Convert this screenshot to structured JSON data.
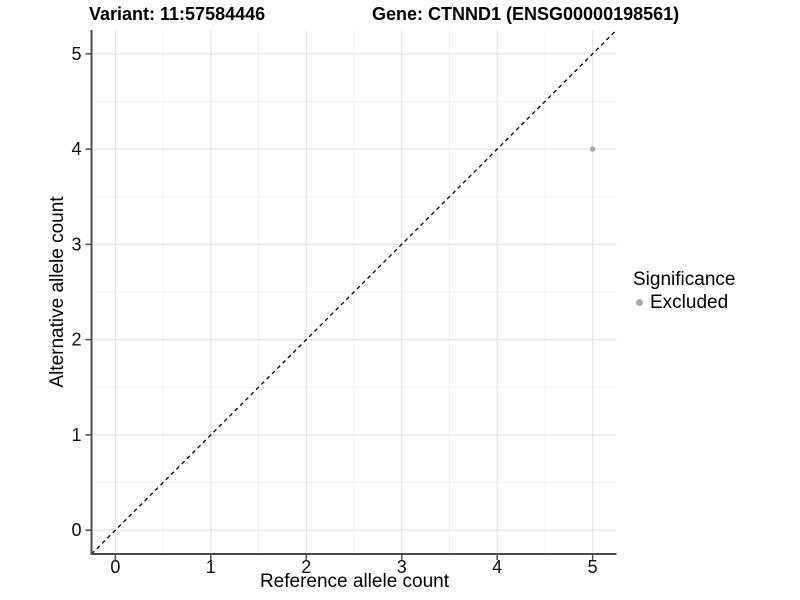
{
  "chart_data": {
    "type": "scatter",
    "title_left": "Variant: 11:57584446",
    "title_right": "Gene: CTNND1 (ENSG00000198561)",
    "xlabel": "Reference allele count",
    "ylabel": "Alternative allele count",
    "xlim": [
      -0.25,
      5.25
    ],
    "ylim": [
      -0.25,
      5.25
    ],
    "x_ticks": [
      0,
      1,
      2,
      3,
      4,
      5
    ],
    "y_ticks": [
      0,
      1,
      2,
      3,
      4,
      5
    ],
    "minor_breaks": [
      0.5,
      1.5,
      2.5,
      3.5,
      4.5
    ],
    "grid": true,
    "legend_position": "right",
    "legend_title": "Significance",
    "series": [
      {
        "name": "Excluded",
        "color": "#ababab",
        "points": [
          {
            "x": 5,
            "y": 4
          }
        ]
      }
    ],
    "identity_line": {
      "style": "dashed",
      "color": "#000000",
      "from": [
        -0.25,
        -0.25
      ],
      "to": [
        5.25,
        5.25
      ]
    },
    "colors": {
      "grid_major": "#e5e5e5",
      "grid_minor": "#f2f2f2",
      "axis_line": "#4d4d4d",
      "tick_text": "#0d0d0d",
      "background": "#ffffff"
    }
  }
}
